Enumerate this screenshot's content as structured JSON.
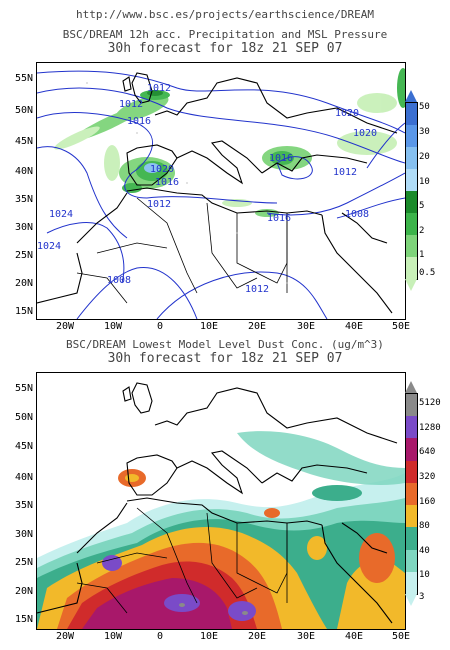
{
  "source_url": "http://www.bsc.es/projects/earthscience/DREAM",
  "panels": [
    {
      "title_line1": "BSC/DREAM 12h acc. Precipitation and MSL Pressure",
      "title_line2": "30h forecast for 18z 21 SEP 07",
      "lat_labels": [
        "55N",
        "50N",
        "45N",
        "40N",
        "35N",
        "30N",
        "25N",
        "20N",
        "15N"
      ],
      "lon_labels": [
        "20W",
        "10W",
        "0",
        "10E",
        "20E",
        "30E",
        "40E",
        "50E"
      ],
      "colorbar_labels": [
        "50",
        "30",
        "20",
        "10",
        "5",
        "2",
        "1",
        "0.5"
      ],
      "colorbar_colors": [
        "#3b6fd1",
        "#5a97e8",
        "#86c0f0",
        "#b0dcf7",
        "#1a8a2a",
        "#3cb44a",
        "#7ed47a",
        "#c8f0b8"
      ],
      "isobar_labels": [
        "1012",
        "1012",
        "1016",
        "1020",
        "1020",
        "1016",
        "1024",
        "1012",
        "1016",
        "1012",
        "1016",
        "1020",
        "1024",
        "1008",
        "1008",
        "1012"
      ]
    },
    {
      "title_line1": "BSC/DREAM Lowest Model Level Dust Conc. (ug/m^3)",
      "title_line2": "30h forecast for 18z 21 SEP 07",
      "lat_labels": [
        "55N",
        "50N",
        "45N",
        "40N",
        "35N",
        "30N",
        "25N",
        "20N",
        "15N"
      ],
      "lon_labels": [
        "20W",
        "10W",
        "0",
        "10E",
        "20E",
        "30E",
        "40E",
        "50E"
      ],
      "colorbar_labels": [
        "5120",
        "1280",
        "640",
        "320",
        "160",
        "80",
        "40",
        "10",
        "3"
      ],
      "colorbar_colors": [
        "#8a8a8a",
        "#7a4bc8",
        "#a8186a",
        "#d02b2b",
        "#e86a2a",
        "#f2b92a",
        "#3cae8c",
        "#7fd6c0",
        "#c6f0ee"
      ]
    }
  ]
}
